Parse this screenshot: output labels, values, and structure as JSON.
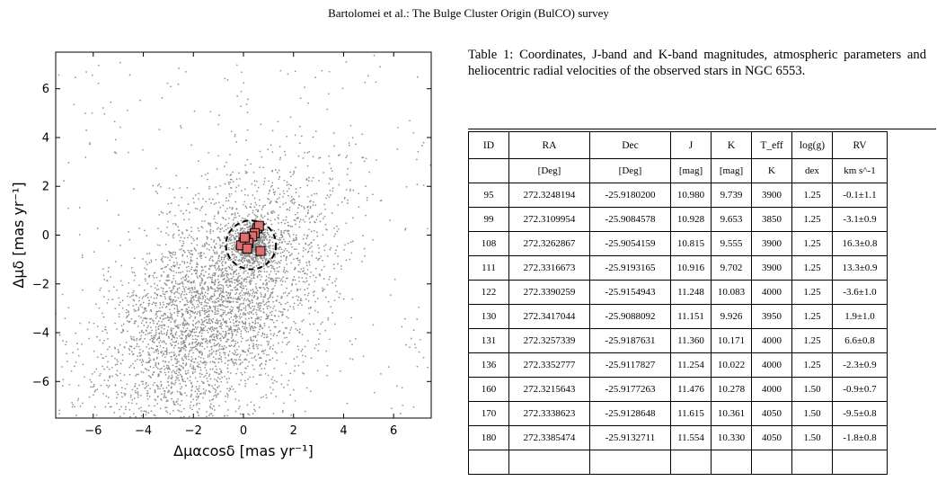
{
  "running_head": "Bartolomei et al.: The Bulge Cluster Origin (BulCO) survey",
  "caption": "Table 1: Coordinates, J-band and K-band magnitudes, atmospheric parameters and heliocentric radial velocities of the observed stars in NGC 6553.",
  "table": {
    "headers": [
      "ID",
      "RA",
      "Dec",
      "J",
      "K",
      "T_eff",
      "log(g)",
      "RV"
    ],
    "units": [
      "",
      "[Deg]",
      "[Deg]",
      "[mag]",
      "[mag]",
      "K",
      "dex",
      "km s^-1"
    ],
    "rows": [
      [
        "95",
        "272.3248194",
        "-25.9180200",
        "10.980",
        "9.739",
        "3900",
        "1.25",
        "-0.1±1.1"
      ],
      [
        "99",
        "272.3109954",
        "-25.9084578",
        "10.928",
        "9.653",
        "3850",
        "1.25",
        "-3.1±0.9"
      ],
      [
        "108",
        "272.3262867",
        "-25.9054159",
        "10.815",
        "9.555",
        "3900",
        "1.25",
        "16.3±0.8"
      ],
      [
        "111",
        "272.3316673",
        "-25.9193165",
        "10.916",
        "9.702",
        "3900",
        "1.25",
        "13.3±0.9"
      ],
      [
        "122",
        "272.3390259",
        "-25.9154943",
        "11.248",
        "10.083",
        "4000",
        "1.25",
        "-3.6±1.0"
      ],
      [
        "130",
        "272.3417044",
        "-25.9088092",
        "11.151",
        "9.926",
        "3950",
        "1.25",
        "1.9±1.0"
      ],
      [
        "131",
        "272.3257339",
        "-25.9187631",
        "11.360",
        "10.171",
        "4000",
        "1.25",
        "6.6±0.8"
      ],
      [
        "136",
        "272.3352777",
        "-25.9117827",
        "11.254",
        "10.022",
        "4000",
        "1.25",
        "-2.3±0.9"
      ],
      [
        "160",
        "272.3215643",
        "-25.9177263",
        "11.476",
        "10.278",
        "4000",
        "1.50",
        "-0.9±0.7"
      ],
      [
        "170",
        "272.3338623",
        "-25.9128648",
        "11.615",
        "10.361",
        "4050",
        "1.50",
        "-9.5±0.8"
      ],
      [
        "180",
        "272.3385474",
        "-25.9132711",
        "11.554",
        "10.330",
        "4050",
        "1.50",
        "-1.8±0.8"
      ],
      [
        "",
        "",
        "",
        "",
        "",
        "",
        "",
        ""
      ]
    ]
  },
  "chart_data": {
    "type": "scatter",
    "xlabel": "Δμαcosδ [mas yr⁻¹]",
    "ylabel": "Δμδ [mas yr⁻¹]",
    "xlim": [
      -7.5,
      7.5
    ],
    "ylim": [
      -7.5,
      7.5
    ],
    "x_ticks": [
      -6,
      -4,
      -2,
      0,
      2,
      4,
      6
    ],
    "y_ticks": [
      -6,
      -4,
      -2,
      0,
      2,
      4,
      6
    ],
    "tick_labels_x": [
      "−6",
      "−4",
      "−2",
      "0",
      "2",
      "4",
      "6"
    ],
    "tick_labels_y": [
      "−6",
      "−4",
      "−2",
      "0",
      "2",
      "4",
      "6"
    ],
    "grid": false,
    "field_stars": {
      "color": "#8c8c8c",
      "approx_count": 4000,
      "distribution": "broad cloud elongated from lower-left to upper-right, densest around (-1, -3); compact cluster clump at (0.3, -0.4)"
    },
    "cluster_radius_circle": {
      "center": [
        0.3,
        -0.4
      ],
      "radius": 1.0,
      "style": "dashed",
      "color": "#000000"
    },
    "members": {
      "marker": "square",
      "color": "#e07070",
      "edge_color": "#000000",
      "points": [
        [
          0.55,
          0.28
        ],
        [
          0.62,
          0.38
        ],
        [
          0.45,
          0.08
        ],
        [
          0.35,
          -0.05
        ],
        [
          0.1,
          -0.18
        ],
        [
          0.0,
          -0.3
        ],
        [
          0.2,
          -0.32
        ],
        [
          -0.1,
          -0.42
        ],
        [
          0.15,
          -0.55
        ],
        [
          0.68,
          -0.65
        ],
        [
          0.05,
          -0.1
        ]
      ]
    }
  }
}
